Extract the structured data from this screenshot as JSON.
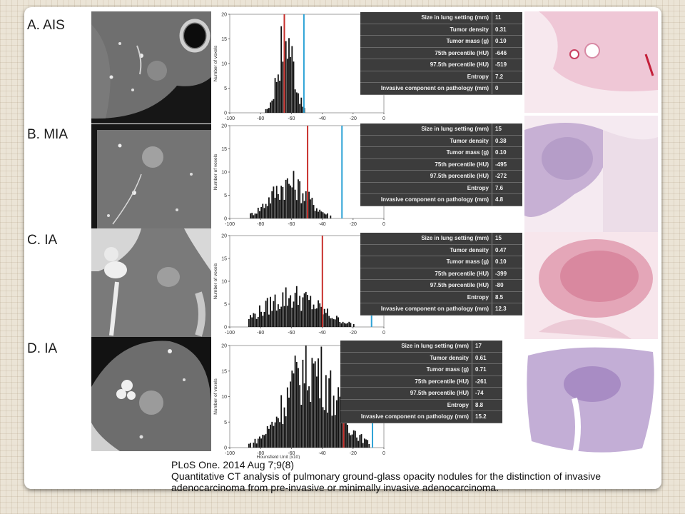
{
  "panels": [
    {
      "label": "A. AIS",
      "stats": [
        {
          "k": "Size in lung setting (mm)",
          "v": "11"
        },
        {
          "k": "Tumor density",
          "v": "0.31"
        },
        {
          "k": "Tumor mass (g)",
          "v": "0.10"
        },
        {
          "k": "75th percentile (HU)",
          "v": "-646"
        },
        {
          "k": "97.5th percentile (HU)",
          "v": "-519"
        },
        {
          "k": "Entropy",
          "v": "7.2"
        },
        {
          "k": "Invasive component on pathology (mm)",
          "v": "0"
        }
      ],
      "red_line": -64.6,
      "blue_line": -51.9,
      "histogram": {
        "center": -64,
        "spread": 5,
        "maxv": 19
      }
    },
    {
      "label": "B. MIA",
      "stats": [
        {
          "k": "Size in lung setting (mm)",
          "v": "15"
        },
        {
          "k": "Tumor density",
          "v": "0.38"
        },
        {
          "k": "Tumor mass (g)",
          "v": "0.10"
        },
        {
          "k": "75th percentile (HU)",
          "v": "-495"
        },
        {
          "k": "97.5th percentile (HU)",
          "v": "-272"
        },
        {
          "k": "Entropy",
          "v": "7.6"
        },
        {
          "k": "Invasive component on pathology (mm)",
          "v": "4.8"
        }
      ],
      "red_line": -49.5,
      "blue_line": -27.2,
      "histogram": {
        "center": -62,
        "spread": 12,
        "maxv": 9
      }
    },
    {
      "label": "C. IA",
      "stats": [
        {
          "k": "Size in lung setting (mm)",
          "v": "15"
        },
        {
          "k": "Tumor density",
          "v": "0.47"
        },
        {
          "k": "Tumor mass (g)",
          "v": "0.10"
        },
        {
          "k": "75th percentile (HU)",
          "v": "-399"
        },
        {
          "k": "97.5th percentile (HU)",
          "v": "-80"
        },
        {
          "k": "Entropy",
          "v": "8.5"
        },
        {
          "k": "Invasive component on pathology (mm)",
          "v": "12.3"
        }
      ],
      "red_line": -39.9,
      "blue_line": -8.0,
      "histogram": {
        "center": -60,
        "spread": 18,
        "maxv": 8
      }
    },
    {
      "label": "D. IA",
      "stats": [
        {
          "k": "Size in lung setting (mm)",
          "v": "17"
        },
        {
          "k": "Tumor density",
          "v": "0.61"
        },
        {
          "k": "Tumor mass (g)",
          "v": "0.71"
        },
        {
          "k": "75th percentile (HU)",
          "v": "-261"
        },
        {
          "k": "97.5th percentile (HU)",
          "v": "-74"
        },
        {
          "k": "Entropy",
          "v": "8.8"
        },
        {
          "k": "Invasive component on pathology (mm)",
          "v": "15.2"
        }
      ],
      "red_line": -26.1,
      "blue_line": -7.4,
      "histogram": {
        "center": -48,
        "spread": 16,
        "maxv": 19
      }
    }
  ],
  "axes": {
    "y_label": "Number of voxels",
    "x_label": "Hounsfield Unit (x10)",
    "x_ticks": [
      "-100",
      "-80",
      "-60",
      "-40",
      "-20",
      "0"
    ],
    "y_ticks": [
      "0",
      "5",
      "10",
      "15",
      "20"
    ]
  },
  "colors": {
    "red_line": "#c8302c",
    "blue_line": "#2ea3d6",
    "table_bg": "#3c3c3c"
  },
  "citation": {
    "line1": "PLoS One. 2014 Aug 7;9(8)",
    "line2": "Quantitative CT analysis of pulmonary ground-glass opacity nodules for the distinction of invasive",
    "line3": "adenocarcinoma from pre-invasive or minimally invasive adenocarcinoma."
  }
}
